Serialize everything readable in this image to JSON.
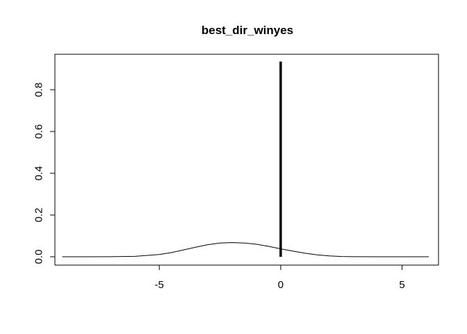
{
  "chart_data": {
    "type": "line",
    "title": "best_dir_winyes",
    "xlabel": "",
    "ylabel": "",
    "xlim": [
      -9.3,
      6.5
    ],
    "ylim": [
      -0.04,
      0.97
    ],
    "x_ticks": [
      -5,
      0,
      5
    ],
    "x_tick_labels": [
      "-5",
      "0",
      "5"
    ],
    "y_ticks": [
      0.0,
      0.2,
      0.4,
      0.6,
      0.8
    ],
    "y_tick_labels": [
      "0.0",
      "0.2",
      "0.4",
      "0.6",
      "0.8"
    ],
    "grid": false,
    "legend": "none",
    "line_color": "#000000",
    "series": [
      {
        "kind": "density-curve",
        "x": [
          -9.0,
          -8.0,
          -7.0,
          -6.0,
          -5.0,
          -4.5,
          -4.0,
          -3.5,
          -3.0,
          -2.5,
          -2.0,
          -1.5,
          -1.0,
          -0.5,
          0.0,
          0.5,
          1.0,
          1.5,
          2.0,
          2.5,
          3.0,
          4.0,
          5.0,
          6.1
        ],
        "y": [
          0.0,
          0.0,
          0.0005,
          0.002,
          0.011,
          0.02,
          0.033,
          0.046,
          0.058,
          0.066,
          0.068,
          0.066,
          0.06,
          0.05,
          0.038,
          0.027,
          0.017,
          0.009,
          0.004,
          0.0015,
          0.0005,
          0.0,
          0.0,
          0.0
        ]
      },
      {
        "kind": "spike",
        "x": [
          0.0,
          0.0
        ],
        "y": [
          0.0,
          0.935
        ]
      }
    ]
  }
}
